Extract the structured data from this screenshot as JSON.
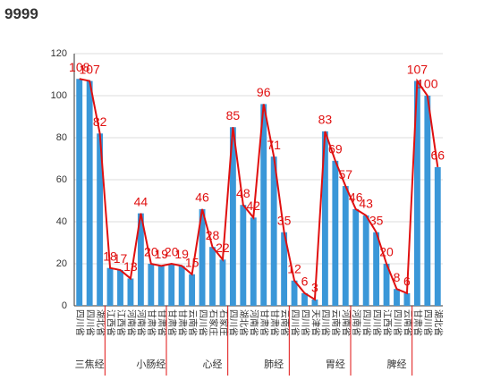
{
  "title": "9999",
  "chart_data": {
    "type": "bar-line",
    "categories": [
      "四川省",
      "四川省",
      "湖北省",
      "江西省",
      "江西省",
      "河南省",
      "河南省",
      "甘肃省",
      "甘肃省",
      "甘肃省",
      "甘肃省",
      "云南省",
      "四川省",
      "石家庄",
      "石家庄",
      "四川省",
      "湖北省",
      "河南省",
      "甘肃省",
      "甘肃省",
      "云南省",
      "四川省",
      "四川省",
      "天津省",
      "四川省",
      "云南省",
      "河南省",
      "河南省",
      "四川省",
      "四川省",
      "江西省",
      "四川省",
      "云南省",
      "甘肃省",
      "四川省",
      "湖北省"
    ],
    "values": [
      108,
      107,
      82,
      18,
      17,
      13,
      44,
      20,
      19,
      20,
      19,
      15,
      46,
      28,
      22,
      85,
      48,
      42,
      96,
      71,
      35,
      12,
      6,
      3,
      83,
      69,
      57,
      46,
      43,
      35,
      20,
      8,
      6,
      107,
      100,
      66
    ],
    "groups": [
      "三焦经",
      "小肠经",
      "心经",
      "肺经",
      "胃经",
      "脾经"
    ],
    "bar_color": "#3a97d8",
    "line_color": "#e01010",
    "ylim": [
      0,
      120
    ],
    "yticks": [
      0,
      20,
      40,
      60,
      80,
      100,
      120
    ],
    "grid": true
  }
}
